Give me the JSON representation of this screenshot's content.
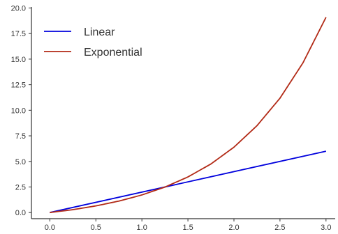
{
  "chart_data": {
    "type": "line",
    "title": "",
    "xlabel": "",
    "ylabel": "",
    "xlim": [
      -0.2,
      3.1
    ],
    "ylim": [
      -0.6,
      20.1
    ],
    "grid": false,
    "legend_position": "top-left",
    "xticks": [
      0.0,
      0.5,
      1.0,
      1.5,
      2.0,
      2.5,
      3.0
    ],
    "xtick_labels": [
      "0.0",
      "0.5",
      "1.0",
      "1.5",
      "2.0",
      "2.5",
      "3.0"
    ],
    "yticks": [
      0.0,
      2.5,
      5.0,
      7.5,
      10.0,
      12.5,
      15.0,
      17.5,
      20.0
    ],
    "ytick_labels": [
      "0.0",
      "2.5",
      "5.0",
      "7.5",
      "10.0",
      "12.5",
      "15.0",
      "17.5",
      "20.0"
    ],
    "series": [
      {
        "name": "Linear",
        "color": "#0000dd",
        "x": [
          0.0,
          3.0
        ],
        "y": [
          0.0,
          6.0
        ]
      },
      {
        "name": "Exponential",
        "color": "#b22a16",
        "x": [
          0.0,
          0.25,
          0.5,
          0.75,
          1.0,
          1.25,
          1.5,
          1.75,
          2.0,
          2.25,
          2.5,
          2.75,
          3.0
        ],
        "y": [
          0.0,
          0.28,
          0.65,
          1.12,
          1.72,
          2.49,
          3.48,
          4.75,
          6.39,
          8.49,
          11.18,
          14.64,
          19.09
        ]
      }
    ]
  }
}
